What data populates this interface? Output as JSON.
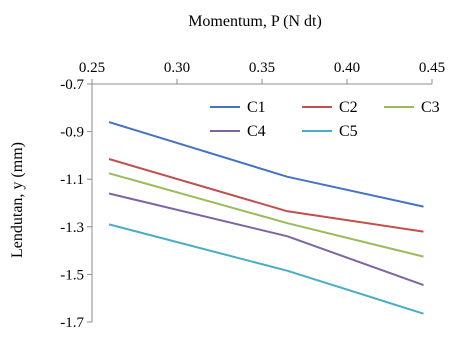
{
  "chart_data": {
    "type": "line",
    "xlabel": "Momentum, P (N dt)",
    "ylabel": "Lendutan, y (mm)",
    "xlim": [
      0.25,
      0.45
    ],
    "ylim": [
      -1.7,
      -0.7
    ],
    "x_axis_position": "top",
    "grid": false,
    "legend_position": "top-right, inside plot",
    "x_ticks": [
      "0.25",
      "0.30",
      "0.35",
      "0.40",
      "0.45"
    ],
    "y_ticks": [
      "-0.7",
      "-0.9",
      "-1.1",
      "-1.3",
      "-1.5",
      "-1.7"
    ],
    "x": [
      0.26,
      0.365,
      0.445
    ],
    "series": [
      {
        "name": "C1",
        "color": "#4472C4",
        "values": [
          -0.86,
          -1.09,
          -1.215
        ]
      },
      {
        "name": "C2",
        "color": "#C0504D",
        "values": [
          -1.015,
          -1.235,
          -1.32
        ]
      },
      {
        "name": "C3",
        "color": "#9BBB59",
        "values": [
          -1.075,
          -1.285,
          -1.425
        ]
      },
      {
        "name": "C4",
        "color": "#8064A2",
        "values": [
          -1.16,
          -1.34,
          -1.545
        ]
      },
      {
        "name": "C5",
        "color": "#4BACC6",
        "values": [
          -1.29,
          -1.485,
          -1.665
        ]
      }
    ]
  }
}
